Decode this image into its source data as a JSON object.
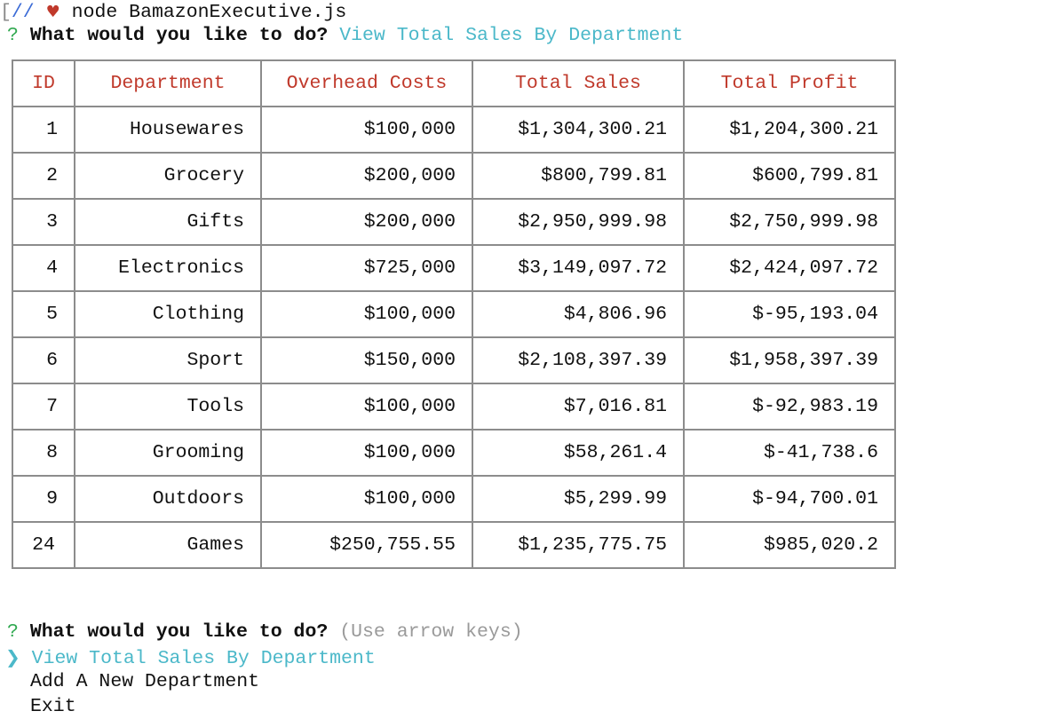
{
  "terminal": {
    "bracket": "[",
    "comment": "//",
    "heart": "♥",
    "command": "node BamazonExecutive.js"
  },
  "first_prompt": {
    "qmark": "?",
    "question": "What would you like to do?",
    "answer": "View Total Sales By Department"
  },
  "table": {
    "headers": [
      "ID",
      "Department",
      "Overhead Costs",
      "Total Sales",
      "Total Profit"
    ],
    "rows": [
      [
        "1",
        "Housewares",
        "$100,000",
        "$1,304,300.21",
        "$1,204,300.21"
      ],
      [
        "2",
        "Grocery",
        "$200,000",
        "$800,799.81",
        "$600,799.81"
      ],
      [
        "3",
        "Gifts",
        "$200,000",
        "$2,950,999.98",
        "$2,750,999.98"
      ],
      [
        "4",
        "Electronics",
        "$725,000",
        "$3,149,097.72",
        "$2,424,097.72"
      ],
      [
        "5",
        "Clothing",
        "$100,000",
        "$4,806.96",
        "$-95,193.04"
      ],
      [
        "6",
        "Sport",
        "$150,000",
        "$2,108,397.39",
        "$1,958,397.39"
      ],
      [
        "7",
        "Tools",
        "$100,000",
        "$7,016.81",
        "$-92,983.19"
      ],
      [
        "8",
        "Grooming",
        "$100,000",
        "$58,261.4",
        "$-41,738.6"
      ],
      [
        "9",
        "Outdoors",
        "$100,000",
        "$5,299.99",
        "$-94,700.01"
      ],
      [
        "24",
        "Games",
        "$250,755.55",
        "$1,235,775.75",
        "$985,020.2"
      ]
    ]
  },
  "second_prompt": {
    "qmark": "?",
    "question": "What would you like to do?",
    "hint": "(Use arrow keys)",
    "pointer": "❯",
    "options": [
      "View Total Sales By Department",
      "Add A New Department",
      "Exit"
    ]
  },
  "colors": {
    "header_text": "#c0392b",
    "answer_text": "#4bb8c9",
    "qmark": "#2fa84f",
    "border": "#8c8c8c"
  }
}
